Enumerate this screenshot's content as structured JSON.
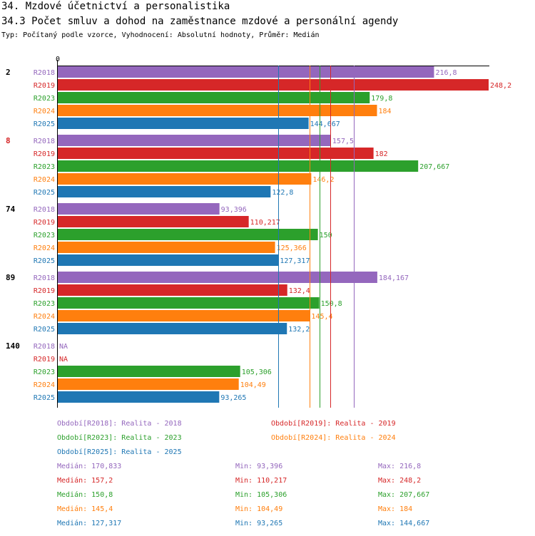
{
  "header": {
    "title": "34. Mzdové účetnictví a personalistika",
    "subtitle": "34.3 Počet smluv a dohod na zaměstnance mzdové a personální agendy",
    "type_line": "Typ: Počítaný podle vzorce, Vyhodnocení: Absolutní hodnoty, Průměr: Medián"
  },
  "colors": {
    "R2018": "#9467bd",
    "R2019": "#d62728",
    "R2023": "#2ca02c",
    "R2024": "#ff7f0e",
    "R2025": "#1f77b4"
  },
  "chart_data": {
    "type": "bar",
    "orientation": "horizontal",
    "title": "34.3 Počet smluv a dohod na zaměstnance mzdové a personální agendy",
    "x_axis_tick": "0",
    "xlim": [
      0,
      248.2
    ],
    "series_names": [
      "R2018",
      "R2019",
      "R2023",
      "R2024",
      "R2025"
    ],
    "groups": [
      {
        "label": "2",
        "highlight": false,
        "values": [
          {
            "series": "R2018",
            "value": 216.8,
            "label": "216,8"
          },
          {
            "series": "R2019",
            "value": 248.2,
            "label": "248,2"
          },
          {
            "series": "R2023",
            "value": 179.8,
            "label": "179,8"
          },
          {
            "series": "R2024",
            "value": 184,
            "label": "184"
          },
          {
            "series": "R2025",
            "value": 144.667,
            "label": "144,667"
          }
        ]
      },
      {
        "label": "8",
        "highlight": true,
        "values": [
          {
            "series": "R2018",
            "value": 157.5,
            "label": "157,5"
          },
          {
            "series": "R2019",
            "value": 182,
            "label": "182"
          },
          {
            "series": "R2023",
            "value": 207.667,
            "label": "207,667"
          },
          {
            "series": "R2024",
            "value": 146.2,
            "label": "146,2"
          },
          {
            "series": "R2025",
            "value": 122.8,
            "label": "122,8"
          }
        ]
      },
      {
        "label": "74",
        "highlight": false,
        "values": [
          {
            "series": "R2018",
            "value": 93.396,
            "label": "93,396"
          },
          {
            "series": "R2019",
            "value": 110.217,
            "label": "110,217"
          },
          {
            "series": "R2023",
            "value": 150,
            "label": "150"
          },
          {
            "series": "R2024",
            "value": 125.366,
            "label": "125,366"
          },
          {
            "series": "R2025",
            "value": 127.317,
            "label": "127,317"
          }
        ]
      },
      {
        "label": "89",
        "highlight": false,
        "values": [
          {
            "series": "R2018",
            "value": 184.167,
            "label": "184,167"
          },
          {
            "series": "R2019",
            "value": 132.4,
            "label": "132,4"
          },
          {
            "series": "R2023",
            "value": 150.8,
            "label": "150,8"
          },
          {
            "series": "R2024",
            "value": 145.4,
            "label": "145,4"
          },
          {
            "series": "R2025",
            "value": 132.2,
            "label": "132,2"
          }
        ]
      },
      {
        "label": "140",
        "highlight": false,
        "values": [
          {
            "series": "R2018",
            "value": null,
            "label": "NA"
          },
          {
            "series": "R2019",
            "value": null,
            "label": "NA"
          },
          {
            "series": "R2023",
            "value": 105.306,
            "label": "105,306"
          },
          {
            "series": "R2024",
            "value": 104.49,
            "label": "104,49"
          },
          {
            "series": "R2025",
            "value": 93.265,
            "label": "93,265"
          }
        ]
      }
    ],
    "median_lines": [
      {
        "series": "R2018",
        "value": 170.833
      },
      {
        "series": "R2019",
        "value": 157.2
      },
      {
        "series": "R2023",
        "value": 150.8
      },
      {
        "series": "R2024",
        "value": 145.4
      },
      {
        "series": "R2025",
        "value": 127.317
      }
    ]
  },
  "legend": {
    "periods": [
      {
        "series": "R2018",
        "text": "Období[R2018]: Realita - 2018"
      },
      {
        "series": "R2019",
        "text": "Období[R2019]: Realita - 2019"
      },
      {
        "series": "R2023",
        "text": "Období[R2023]: Realita - 2023"
      },
      {
        "series": "R2024",
        "text": "Období[R2024]: Realita - 2024"
      },
      {
        "series": "R2025",
        "text": "Období[R2025]: Realita - 2025"
      }
    ],
    "stats": [
      {
        "series": "R2018",
        "median": "Medián: 170,833",
        "min": "Min: 93,396",
        "max": "Max: 216,8"
      },
      {
        "series": "R2019",
        "median": "Medián: 157,2",
        "min": "Min: 110,217",
        "max": "Max: 248,2"
      },
      {
        "series": "R2023",
        "median": "Medián: 150,8",
        "min": "Min: 105,306",
        "max": "Max: 207,667"
      },
      {
        "series": "R2024",
        "median": "Medián: 145,4",
        "min": "Min: 104,49",
        "max": "Max: 184"
      },
      {
        "series": "R2025",
        "median": "Medián: 127,317",
        "min": "Min: 93,265",
        "max": "Max: 144,667"
      }
    ]
  }
}
